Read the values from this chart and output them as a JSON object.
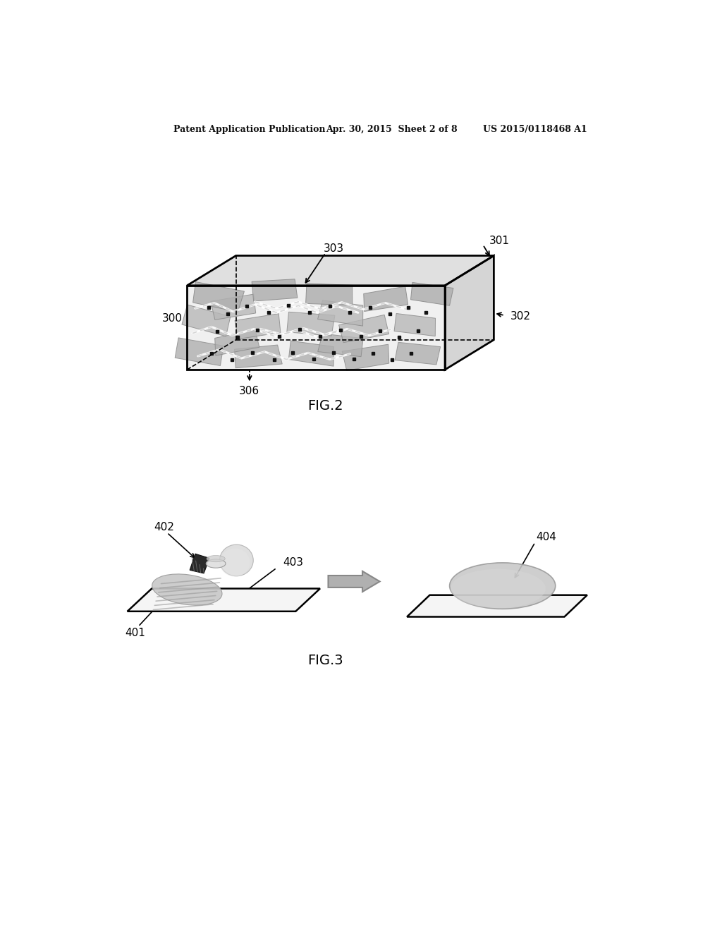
{
  "bg_color": "#ffffff",
  "header_left": "Patent Application Publication",
  "header_mid": "Apr. 30, 2015  Sheet 2 of 8",
  "header_right": "US 2015/0118468 A1",
  "fig2_label": "FIG.2",
  "fig3_label": "FIG.3",
  "label_300": "300",
  "label_301": "301",
  "label_302": "302",
  "label_303": "303",
  "label_306": "306",
  "label_401": "401",
  "label_402": "402",
  "label_403": "403",
  "label_404": "404"
}
